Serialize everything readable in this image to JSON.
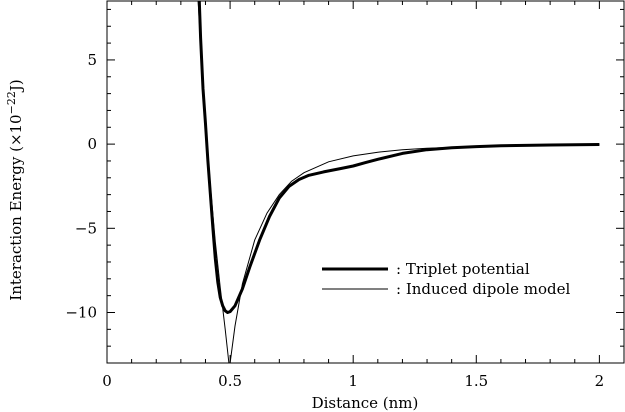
{
  "chart_data": {
    "type": "line",
    "title": "",
    "xlabel": "Distance (nm)",
    "ylabel_main": "Interaction Energy (×10",
    "ylabel_exp": "−22",
    "ylabel_unit": "J)",
    "xlim": [
      0,
      2.1
    ],
    "ylim": [
      -13,
      8.5
    ],
    "x_ticks": [
      {
        "value": 0,
        "label": "0"
      },
      {
        "value": 0.5,
        "label": "0.5"
      },
      {
        "value": 1,
        "label": "1"
      },
      {
        "value": 1.5,
        "label": "1.5"
      },
      {
        "value": 2,
        "label": "2"
      }
    ],
    "y_ticks": [
      {
        "value": 5,
        "label": "5"
      },
      {
        "value": 0,
        "label": "0"
      },
      {
        "value": -5,
        "label": "−5"
      },
      {
        "value": -10,
        "label": "−10"
      }
    ],
    "x_minor_step": 0.1,
    "y_minor_step": 1,
    "grid": false,
    "legend_position": "lower-right",
    "series": [
      {
        "name": ": Triplet potential",
        "style": "thick",
        "color": "#000000",
        "points": [
          [
            0.375,
            8.5
          ],
          [
            0.38,
            6.3
          ],
          [
            0.39,
            3.3
          ],
          [
            0.4,
            1.2
          ],
          [
            0.41,
            -1.0
          ],
          [
            0.42,
            -3.0
          ],
          [
            0.43,
            -5.0
          ],
          [
            0.44,
            -6.8
          ],
          [
            0.45,
            -8.2
          ],
          [
            0.46,
            -9.1
          ],
          [
            0.47,
            -9.6
          ],
          [
            0.48,
            -9.9
          ],
          [
            0.49,
            -10.0
          ],
          [
            0.5,
            -9.95
          ],
          [
            0.52,
            -9.6
          ],
          [
            0.55,
            -8.6
          ],
          [
            0.58,
            -7.3
          ],
          [
            0.62,
            -5.7
          ],
          [
            0.66,
            -4.3
          ],
          [
            0.7,
            -3.2
          ],
          [
            0.74,
            -2.5
          ],
          [
            0.78,
            -2.1
          ],
          [
            0.82,
            -1.85
          ],
          [
            0.88,
            -1.65
          ],
          [
            0.95,
            -1.45
          ],
          [
            1.0,
            -1.3
          ],
          [
            1.05,
            -1.1
          ],
          [
            1.1,
            -0.9
          ],
          [
            1.2,
            -0.55
          ],
          [
            1.3,
            -0.33
          ],
          [
            1.4,
            -0.22
          ],
          [
            1.5,
            -0.15
          ],
          [
            1.6,
            -0.1
          ],
          [
            1.8,
            -0.05
          ],
          [
            2.0,
            -0.02
          ]
        ]
      },
      {
        "name": ": Induced dipole model",
        "style": "thin",
        "color": "#000000",
        "points": [
          [
            0.37,
            8.5
          ],
          [
            0.38,
            6.0
          ],
          [
            0.4,
            1.5
          ],
          [
            0.42,
            -2.5
          ],
          [
            0.44,
            -5.8
          ],
          [
            0.46,
            -8.5
          ],
          [
            0.48,
            -11.0
          ],
          [
            0.495,
            -13.0
          ]
        ],
        "tail_points": [
          [
            0.5,
            -13.0
          ],
          [
            0.52,
            -10.8
          ],
          [
            0.55,
            -8.3
          ],
          [
            0.6,
            -5.7
          ],
          [
            0.65,
            -4.1
          ],
          [
            0.7,
            -3.0
          ],
          [
            0.75,
            -2.2
          ],
          [
            0.8,
            -1.7
          ],
          [
            0.9,
            -1.05
          ],
          [
            1.0,
            -0.7
          ],
          [
            1.1,
            -0.48
          ],
          [
            1.2,
            -0.34
          ],
          [
            1.3,
            -0.25
          ],
          [
            1.5,
            -0.14
          ],
          [
            1.7,
            -0.08
          ],
          [
            2.0,
            -0.03
          ]
        ]
      }
    ]
  }
}
